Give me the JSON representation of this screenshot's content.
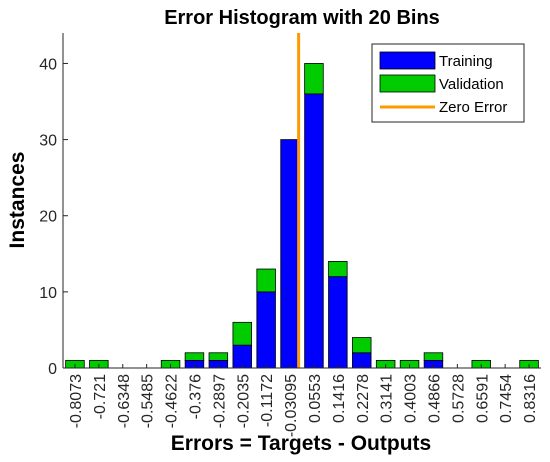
{
  "chart_data": {
    "type": "bar",
    "title": "Error Histogram with 20 Bins",
    "xlabel": "Errors = Targets - Outputs",
    "ylabel": "Instances",
    "categories": [
      "-0.8073",
      "-0.721",
      "-0.6348",
      "-0.5485",
      "-0.4622",
      "-0.376",
      "-0.2897",
      "-0.2035",
      "-0.1172",
      "-0.03095",
      "0.0553",
      "0.1416",
      "0.2278",
      "0.3141",
      "0.4003",
      "0.4866",
      "0.5728",
      "0.6591",
      "0.7454",
      "0.8316"
    ],
    "stacked": true,
    "series": [
      {
        "name": "Training",
        "color": "#0000ff",
        "values": [
          0,
          0,
          0,
          0,
          0,
          1,
          1,
          3,
          10,
          30,
          36,
          12,
          2,
          0,
          0,
          1,
          0,
          0,
          0,
          0
        ]
      },
      {
        "name": "Validation",
        "color": "#00cc00",
        "values": [
          1,
          1,
          0,
          0,
          1,
          1,
          1,
          3,
          3,
          0,
          4,
          2,
          2,
          1,
          1,
          1,
          0,
          1,
          0,
          1
        ]
      }
    ],
    "reference_line": {
      "name": "Zero Error",
      "color": "#ff9900",
      "x": 0
    },
    "ylim": [
      0,
      44
    ],
    "yticks": [
      0,
      10,
      20,
      30,
      40
    ],
    "legend_position": "top-right",
    "grid": false
  }
}
